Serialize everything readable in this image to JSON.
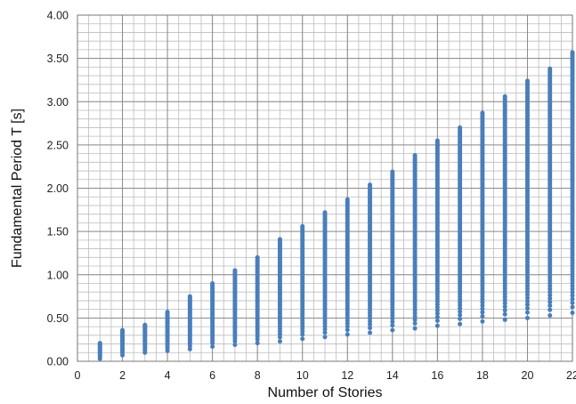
{
  "chart_data": {
    "type": "scatter",
    "title": "",
    "xlabel": "Number of Stories",
    "ylabel": "Fundamental Period T [s]",
    "xlim": [
      0,
      22
    ],
    "ylim": [
      0,
      4
    ],
    "x_ticks": [
      0,
      2,
      4,
      6,
      8,
      10,
      12,
      14,
      16,
      18,
      20,
      22
    ],
    "x_tick_labels": [
      "0",
      "2",
      "4",
      "6",
      "8",
      "10",
      "12",
      "14",
      "16",
      "18",
      "20",
      "22"
    ],
    "y_ticks": [
      0,
      0.5,
      1,
      1.5,
      2,
      2.5,
      3,
      3.5,
      4
    ],
    "y_tick_labels": [
      "0.00",
      "0.50",
      "1.00",
      "1.50",
      "2.00",
      "2.50",
      "3.00",
      "3.50",
      "4.00"
    ],
    "minor_grid_x_step": 0.5,
    "minor_grid_y_step": 0.1,
    "grid": true,
    "legend": "none",
    "marker_color": "#4a7ebb",
    "series": [
      {
        "summary": [
          {
            "x": 1,
            "ymin": 0.03,
            "ymax": 0.21
          },
          {
            "x": 2,
            "ymin": 0.07,
            "ymax": 0.36
          },
          {
            "x": 3,
            "ymin": 0.1,
            "ymax": 0.42
          },
          {
            "x": 4,
            "ymin": 0.12,
            "ymax": 0.57
          },
          {
            "x": 5,
            "ymin": 0.14,
            "ymax": 0.75
          },
          {
            "x": 6,
            "ymin": 0.17,
            "ymax": 0.9
          },
          {
            "x": 7,
            "ymin": 0.19,
            "ymax": 1.05
          },
          {
            "x": 8,
            "ymin": 0.21,
            "ymax": 1.2
          },
          {
            "x": 9,
            "ymin": 0.23,
            "ymax": 1.41
          },
          {
            "x": 10,
            "ymin": 0.26,
            "ymax": 1.56
          },
          {
            "x": 11,
            "ymin": 0.28,
            "ymax": 1.72
          },
          {
            "x": 12,
            "ymin": 0.31,
            "ymax": 1.87
          },
          {
            "x": 13,
            "ymin": 0.33,
            "ymax": 2.04
          },
          {
            "x": 14,
            "ymin": 0.36,
            "ymax": 2.19
          },
          {
            "x": 15,
            "ymin": 0.38,
            "ymax": 2.38
          },
          {
            "x": 16,
            "ymin": 0.41,
            "ymax": 2.55
          },
          {
            "x": 17,
            "ymin": 0.43,
            "ymax": 2.7
          },
          {
            "x": 18,
            "ymin": 0.46,
            "ymax": 2.87
          },
          {
            "x": 19,
            "ymin": 0.48,
            "ymax": 3.06
          },
          {
            "x": 20,
            "ymin": 0.5,
            "ymax": 3.24
          },
          {
            "x": 21,
            "ymin": 0.53,
            "ymax": 3.38
          },
          {
            "x": 22,
            "ymin": 0.56,
            "ymax": 3.57
          }
        ]
      }
    ]
  }
}
